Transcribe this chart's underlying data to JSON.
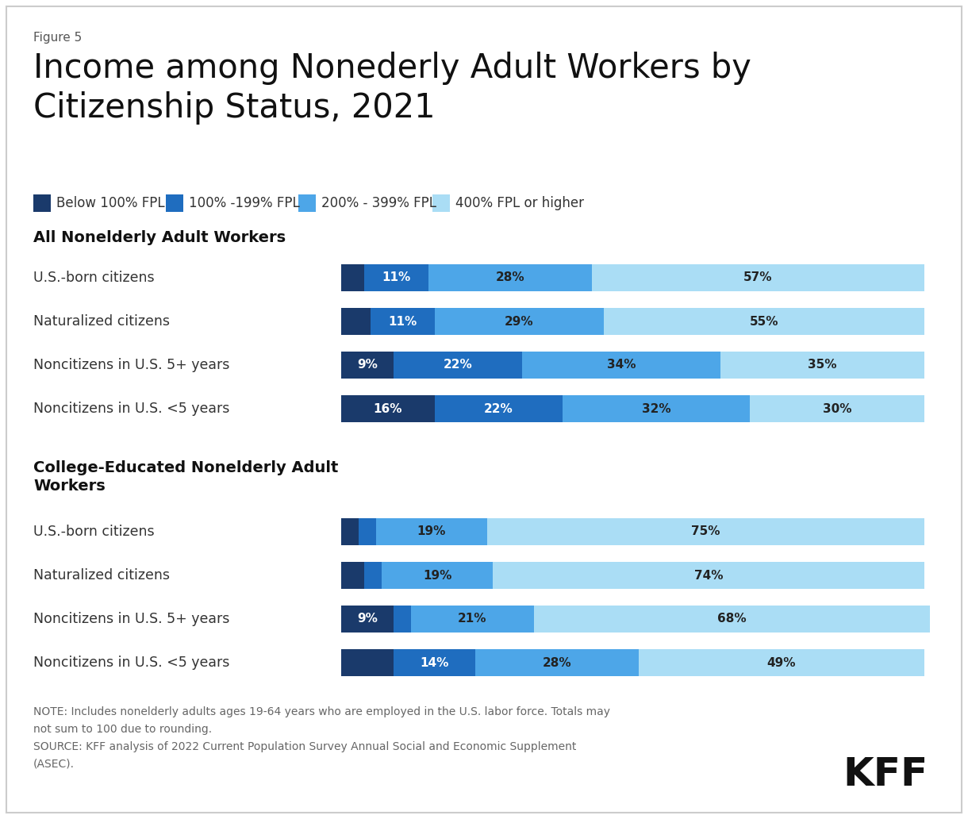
{
  "figure_label": "Figure 5",
  "title": "Income among Nonederly Adult Workers by\nCitizenship Status, 2021",
  "colors": {
    "below100": "#1a3a6b",
    "fpl100_199": "#1f6dbf",
    "fpl200_399": "#4da6e8",
    "fpl400plus": "#aaddf5"
  },
  "legend_labels": [
    "Below 100% FPL",
    "100% -199% FPL",
    "200% - 399% FPL",
    "400% FPL or higher"
  ],
  "group1_title": "All Nonelderly Adult Workers",
  "group1_rows": [
    {
      "label": "U.S.-born citizens",
      "values": [
        4,
        11,
        28,
        57
      ]
    },
    {
      "label": "Naturalized citizens",
      "values": [
        5,
        11,
        29,
        55
      ]
    },
    {
      "label": "Noncitizens in U.S. 5+ years",
      "values": [
        9,
        22,
        34,
        35
      ]
    },
    {
      "label": "Noncitizens in U.S. <5 years",
      "values": [
        16,
        22,
        32,
        30
      ]
    }
  ],
  "group1_display": [
    [
      "",
      "11%",
      "28%",
      "57%"
    ],
    [
      "",
      "11%",
      "29%",
      "55%"
    ],
    [
      "9%",
      "22%",
      "34%",
      "35%"
    ],
    [
      "16%",
      "22%",
      "32%",
      "30%"
    ]
  ],
  "group2_title": "College-Educated Nonelderly Adult\nWorkers",
  "group2_rows": [
    {
      "label": "U.S.-born citizens",
      "values": [
        3,
        3,
        19,
        75
      ]
    },
    {
      "label": "Naturalized citizens",
      "values": [
        4,
        3,
        19,
        74
      ]
    },
    {
      "label": "Noncitizens in U.S. 5+ years",
      "values": [
        9,
        3,
        21,
        68
      ]
    },
    {
      "label": "Noncitizens in U.S. <5 years",
      "values": [
        9,
        14,
        28,
        49
      ]
    }
  ],
  "group2_display": [
    [
      "",
      "",
      "19%",
      "75%"
    ],
    [
      "",
      "",
      "19%",
      "74%"
    ],
    [
      "9%",
      "",
      "21%",
      "68%"
    ],
    [
      "",
      "14%",
      "28%",
      "49%"
    ]
  ],
  "note_line1": "NOTE: Includes nonelderly adults ages 19-64 years who are employed in the U.S. labor force. Totals may",
  "note_line2": "not sum to 100 due to rounding.",
  "note_line3": "SOURCE: KFF analysis of 2022 Current Population Survey Annual Social and Economic Supplement",
  "note_line4": "(ASEC).",
  "background_color": "#ffffff"
}
